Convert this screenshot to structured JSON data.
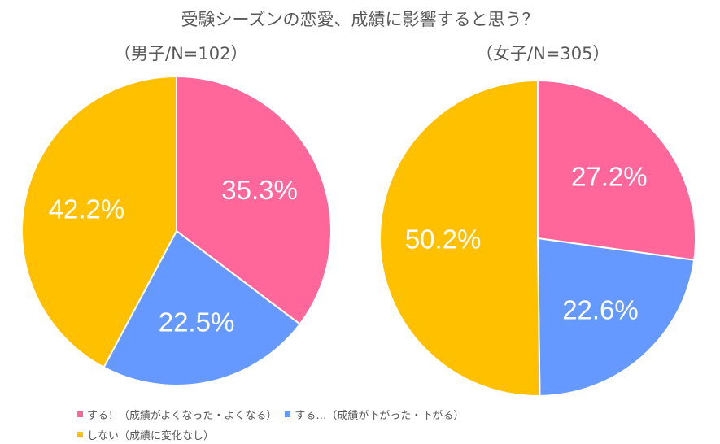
{
  "chart_data": [
    {
      "type": "pie",
      "title": "（男子/N=102）",
      "categories": [
        "する！（成績がよくなった・よくなる）",
        "する…（成績が下がった・下がる）",
        "しない（成績に変化なし）"
      ],
      "values": [
        35.3,
        22.5,
        42.2
      ],
      "labels": [
        "35.3%",
        "22.5%",
        "42.2%"
      ]
    },
    {
      "type": "pie",
      "title": "（女子/N=305）",
      "categories": [
        "する！（成績がよくなった・よくなる）",
        "する…（成績が下がった・下がる）",
        "しない（成績に変化なし）"
      ],
      "values": [
        27.2,
        22.6,
        50.2
      ],
      "labels": [
        "27.2%",
        "22.6%",
        "50.2%"
      ]
    }
  ],
  "title": "受験シーズンの恋愛、成績に影響すると思う？",
  "legend": [
    "する！（成績がよくなった・よくなる）",
    "する…（成績が下がった・下がる）",
    "しない（成績に変化なし）"
  ],
  "colors": [
    "#FF6699",
    "#6699FF",
    "#FFC000"
  ],
  "legend_placement": "bottom-left"
}
